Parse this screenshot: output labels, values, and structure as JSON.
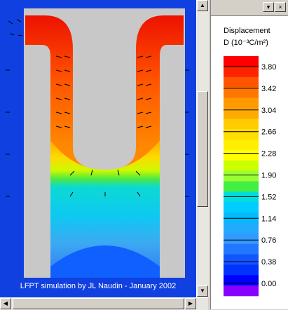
{
  "caption": "LFPT simulation by JL Naudin - January 2002",
  "legend": {
    "title": "Displacement",
    "unit": "D (10⁻³C/m²)",
    "labels": [
      "3.80",
      "3.42",
      "3.04",
      "2.66",
      "2.28",
      "1.90",
      "1.52",
      "1.14",
      "0.76",
      "0.38",
      "0.00"
    ],
    "colors": [
      "#ff0000",
      "#ff2200",
      "#ff5500",
      "#ff7700",
      "#ff9900",
      "#ffaa00",
      "#ffcc00",
      "#ffdd00",
      "#ffee00",
      "#ffff00",
      "#ccff00",
      "#99ff33",
      "#44ee44",
      "#00dddd",
      "#00ccff",
      "#00bbff",
      "#22aaff",
      "#3399ff",
      "#2277ff",
      "#1155ff",
      "#0033ff",
      "#0000ff",
      "#8800ff"
    ],
    "colors_note_swatch_order": "top to bottom"
  },
  "panel_buttons": {
    "menu": "▾",
    "close": "×"
  },
  "scroll": {
    "up": "▲",
    "down": "▼",
    "left": "◀",
    "right": "▶"
  }
}
